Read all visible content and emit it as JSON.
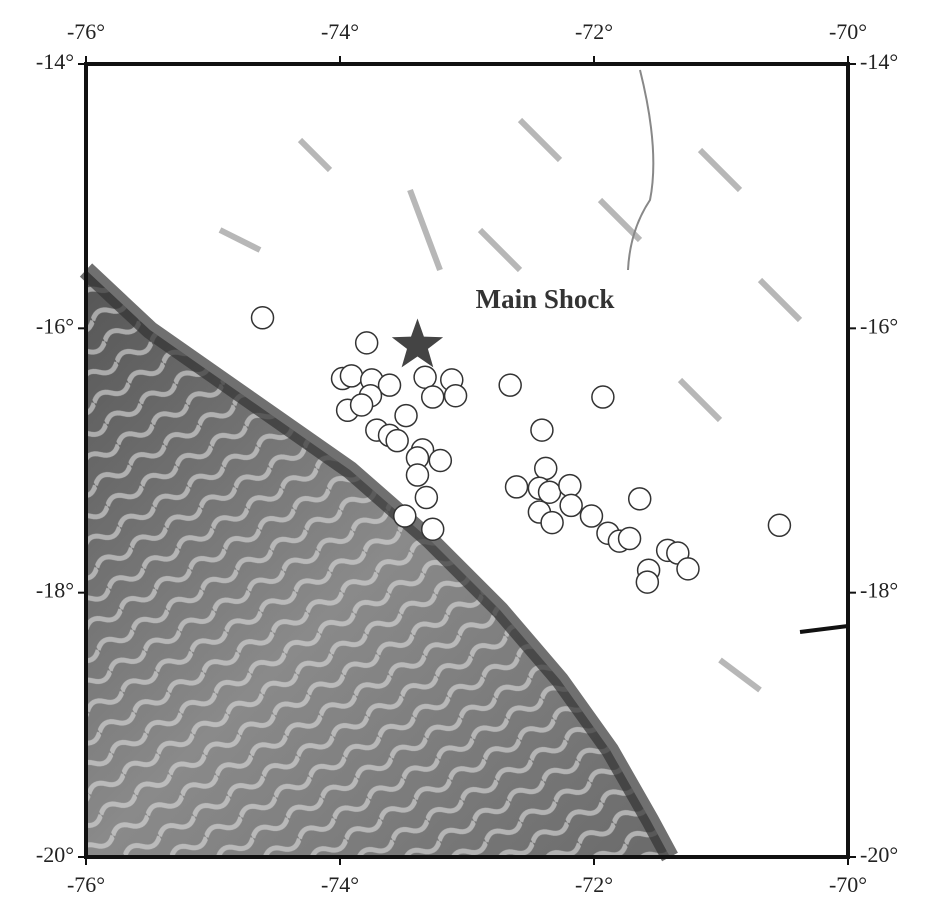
{
  "chart_data": {
    "type": "scatter",
    "xlim": [
      -76,
      -70
    ],
    "ylim": [
      -20,
      -14
    ],
    "xticks": [
      {
        "value": -76,
        "label": "-76°"
      },
      {
        "value": -74,
        "label": "-74°"
      },
      {
        "value": -72,
        "label": "-72°"
      },
      {
        "value": -70,
        "label": "-70°"
      }
    ],
    "yticks": [
      {
        "value": -14,
        "label": "-14°"
      },
      {
        "value": -16,
        "label": "-16°"
      },
      {
        "value": -18,
        "label": "-18°"
      },
      {
        "value": -20,
        "label": "-20°"
      }
    ],
    "x": [
      -74.61,
      -73.79,
      -73.98,
      -73.91,
      -73.75,
      -73.61,
      -73.76,
      -73.94,
      -73.83,
      -73.71,
      -73.61,
      -73.48,
      -73.55,
      -73.33,
      -73.12,
      -73.09,
      -73.27,
      -73.35,
      -73.39,
      -73.21,
      -73.39,
      -73.32,
      -73.49,
      -73.27,
      -72.66,
      -72.41,
      -72.38,
      -72.61,
      -72.43,
      -72.35,
      -72.19,
      -72.18,
      -72.43,
      -72.33,
      -72.02,
      -71.93,
      -71.89,
      -71.8,
      -71.72,
      -71.64,
      -71.42,
      -71.34,
      -71.26,
      -71.57,
      -71.58,
      -70.54
    ],
    "y": [
      -15.92,
      -16.11,
      -16.38,
      -16.36,
      -16.39,
      -16.43,
      -16.51,
      -16.62,
      -16.58,
      -16.77,
      -16.81,
      -16.66,
      -16.85,
      -16.37,
      -16.39,
      -16.51,
      -16.52,
      -16.92,
      -16.98,
      -17.0,
      -17.11,
      -17.28,
      -17.42,
      -17.52,
      -16.43,
      -16.77,
      -17.06,
      -17.2,
      -17.21,
      -17.24,
      -17.19,
      -17.34,
      -17.39,
      -17.47,
      -17.42,
      -16.52,
      -17.55,
      -17.61,
      -17.59,
      -17.29,
      -17.68,
      -17.7,
      -17.82,
      -17.83,
      -17.92,
      -17.49
    ],
    "annotation": {
      "text": "Main Shock",
      "x": -73.39,
      "y": -16.13
    }
  }
}
